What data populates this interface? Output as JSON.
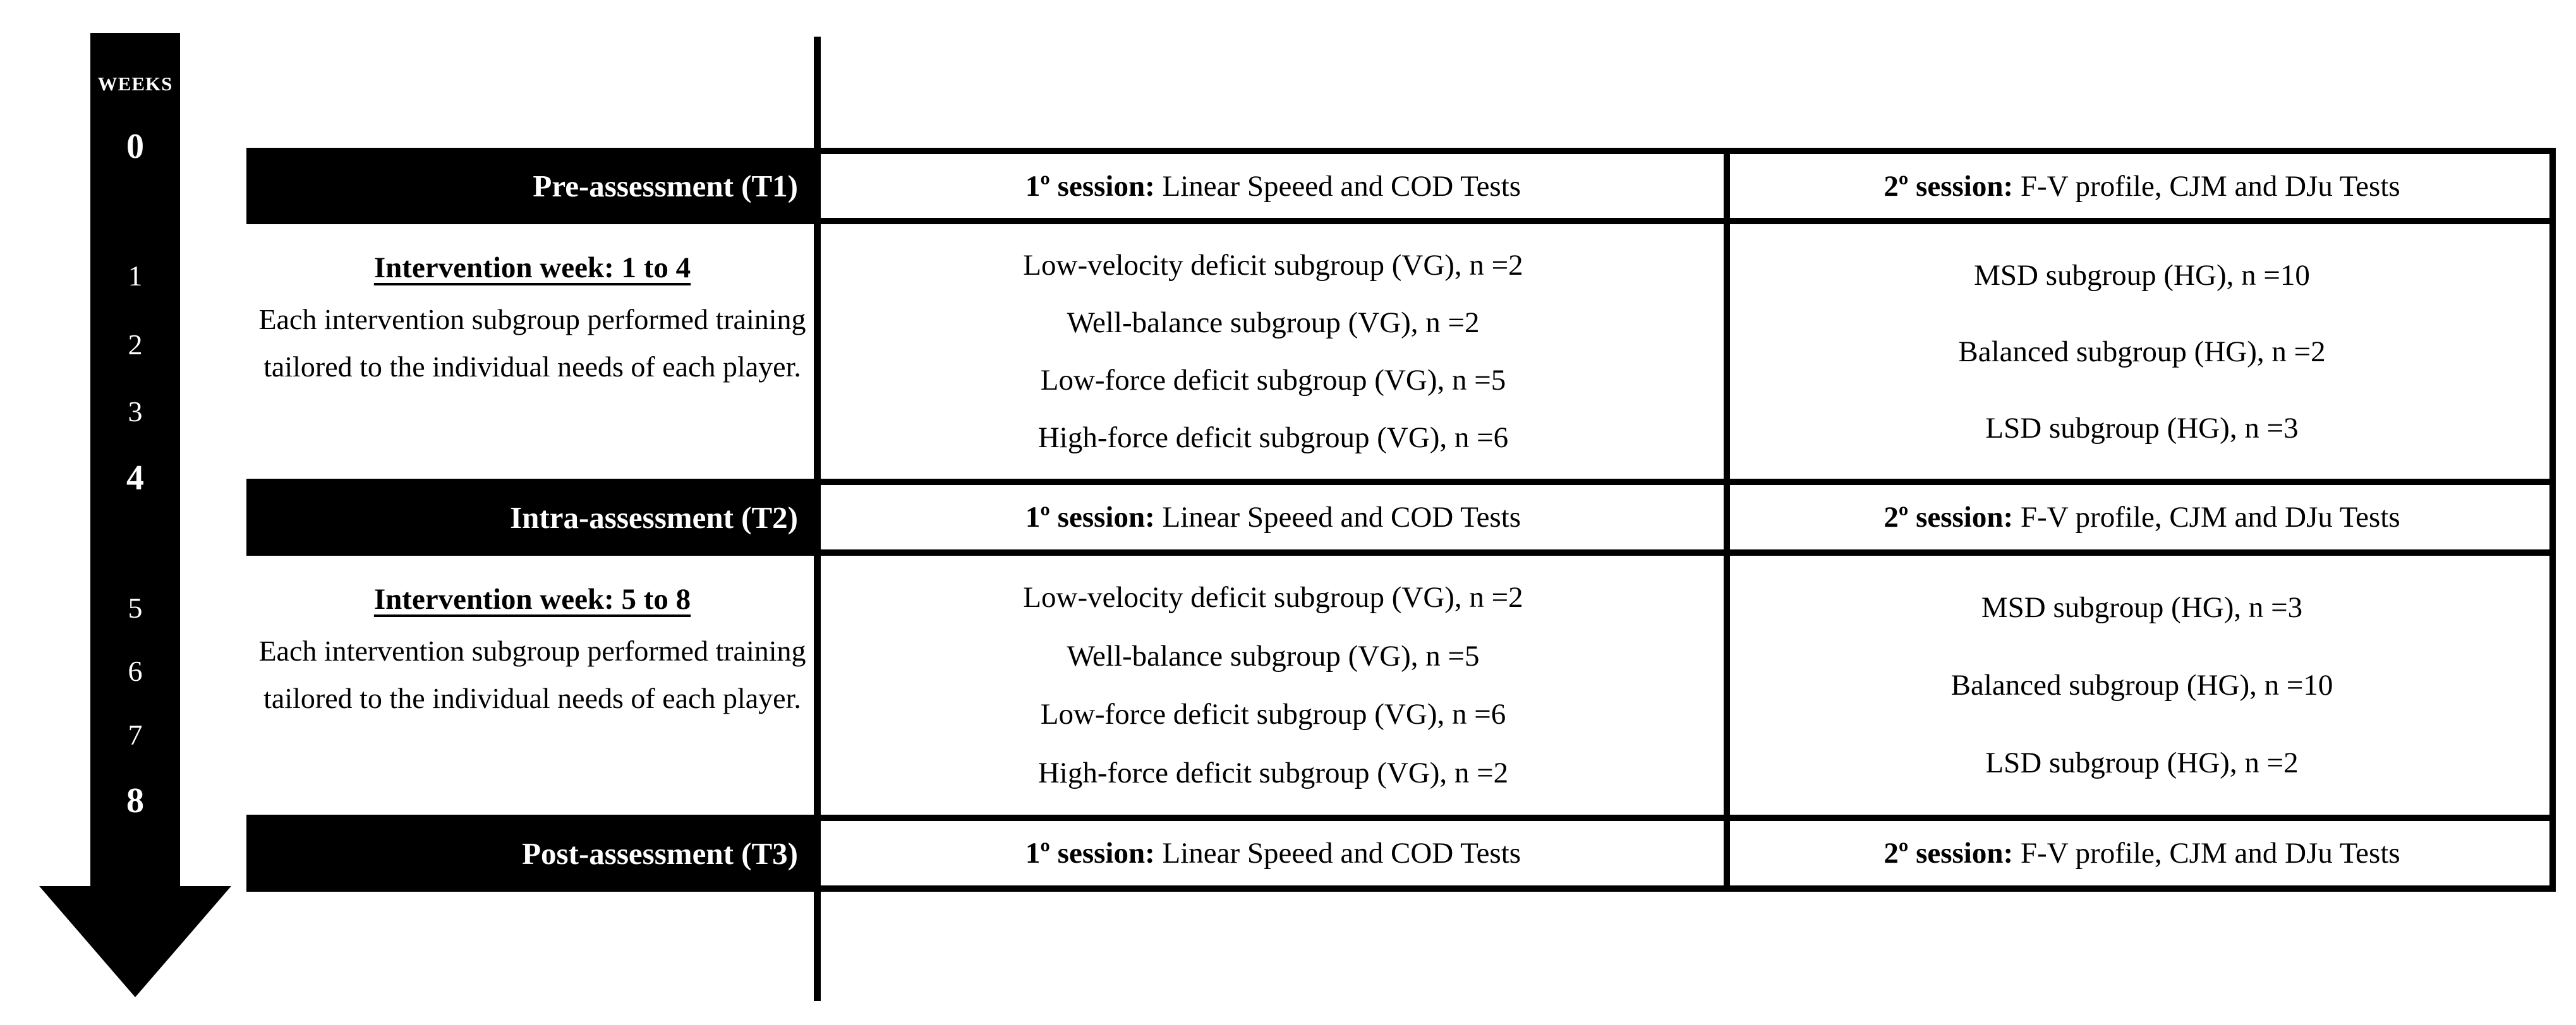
{
  "figure": {
    "background_color": "#ffffff",
    "ink_color": "#000000"
  },
  "timeline": {
    "axis_label": "WEEKS",
    "weeks": [
      {
        "label": "0",
        "milestone": true
      },
      {
        "label": "1",
        "milestone": false
      },
      {
        "label": "2",
        "milestone": false
      },
      {
        "label": "3",
        "milestone": false
      },
      {
        "label": "4",
        "milestone": true
      },
      {
        "label": "5",
        "milestone": false
      },
      {
        "label": "6",
        "milestone": false
      },
      {
        "label": "7",
        "milestone": false
      },
      {
        "label": "8",
        "milestone": true
      }
    ]
  },
  "table": {
    "assessments": [
      {
        "label": "Pre-assessment (T1)",
        "session1_label": "1º session:",
        "session1_text": " Linear Speeed and COD Tests",
        "session2_label": "2º session:",
        "session2_text": " F-V profile, CJM and DJu Tests"
      },
      {
        "label": "Intra-assessment (T2)",
        "session1_label": "1º session:",
        "session1_text": " Linear Speeed and COD Tests",
        "session2_label": "2º session:",
        "session2_text": " F-V profile, CJM and DJu Tests"
      },
      {
        "label": "Post-assessment (T3)",
        "session1_label": "1º session:",
        "session1_text": " Linear Speeed and COD Tests",
        "session2_label": "2º session:",
        "session2_text": " F-V profile, CJM and DJu Tests"
      }
    ],
    "interventions": [
      {
        "title": "Intervention week: 1 to 4",
        "body": "Each intervention subgroup performed training tailored to the individual needs of each player.",
        "vg_lines": [
          "Low-velocity deficit subgroup (VG), n =2",
          "Well-balance subgroup (VG), n =2",
          "Low-force deficit subgroup (VG), n =5",
          "High-force deficit subgroup (VG), n =6"
        ],
        "hg_lines": [
          "MSD subgroup (HG), n =10",
          "Balanced subgroup (HG), n =2",
          "LSD subgroup (HG), n =3"
        ]
      },
      {
        "title": "Intervention week: 5 to 8",
        "body": "Each intervention subgroup performed training tailored to the individual needs of each player.",
        "vg_lines": [
          "Low-velocity deficit subgroup (VG), n =2",
          "Well-balance subgroup (VG), n =5",
          "Low-force deficit subgroup (VG), n =6",
          "High-force deficit subgroup (VG), n =2"
        ],
        "hg_lines": [
          "MSD subgroup (HG), n =3",
          "Balanced subgroup (HG), n =10",
          "LSD subgroup (HG), n =2"
        ]
      }
    ]
  }
}
